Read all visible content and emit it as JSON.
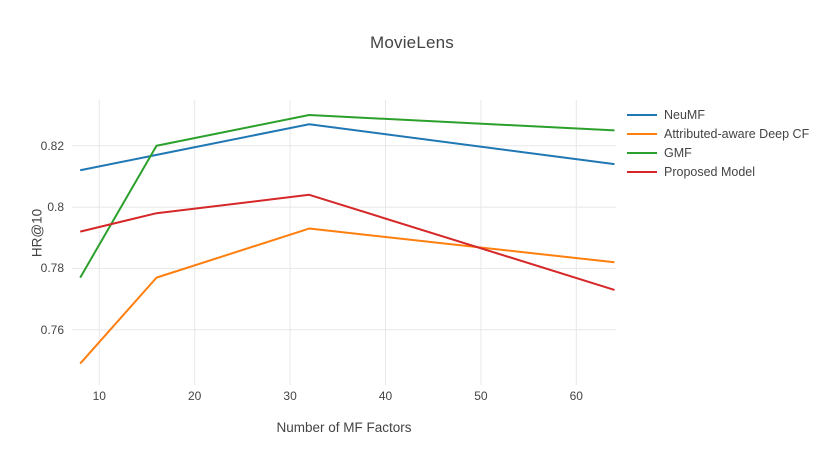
{
  "chart_data": {
    "type": "line",
    "title": "MovieLens",
    "xlabel": "Number of MF Factors",
    "ylabel": "HR@10",
    "x": [
      8,
      16,
      32,
      64
    ],
    "series": [
      {
        "name": "NeuMF",
        "color": "#1f77b4",
        "values": [
          0.812,
          0.817,
          0.827,
          0.814
        ]
      },
      {
        "name": "Attributed-aware Deep CF",
        "color": "#ff7f0e",
        "values": [
          0.749,
          0.777,
          0.793,
          0.782
        ]
      },
      {
        "name": "GMF",
        "color": "#2ca02c",
        "values": [
          0.777,
          0.82,
          0.83,
          0.825
        ]
      },
      {
        "name": "Proposed Model",
        "color": "#d62728",
        "values": [
          0.792,
          0.798,
          0.804,
          0.773
        ]
      }
    ],
    "x_ticks": {
      "values": [
        10,
        20,
        30,
        40,
        50,
        60
      ],
      "labels": [
        "10",
        "20",
        "30",
        "40",
        "50",
        "60"
      ]
    },
    "y_ticks": {
      "values": [
        0.76,
        0.78,
        0.8,
        0.82
      ],
      "labels": [
        "0.76",
        "0.78",
        "0.8",
        "0.82"
      ]
    },
    "x_range": [
      7.14,
      64.16
    ],
    "y_range": [
      0.742,
      0.8349
    ],
    "grid": true,
    "legend_position": "right"
  },
  "styles": {
    "grid_color": "#e8e8e8",
    "text_color": "#444444",
    "background_color": "#ffffff",
    "line_width": 2
  }
}
